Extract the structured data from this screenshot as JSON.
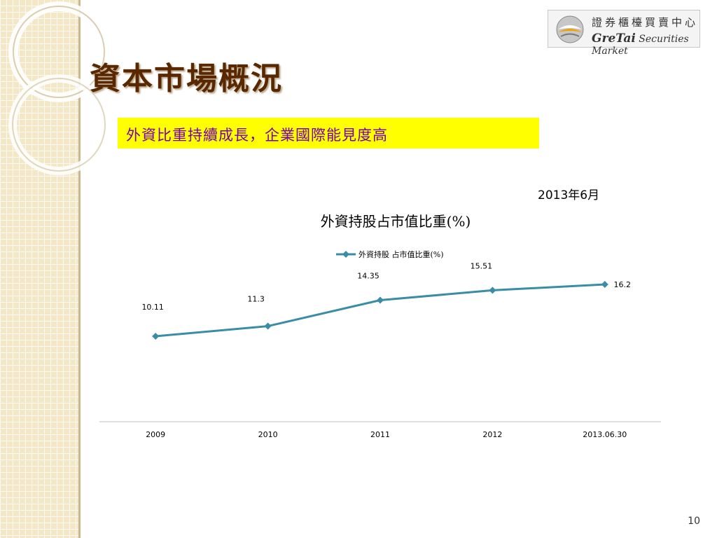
{
  "slide": {
    "title": "資本市場概況",
    "highlight": "外資比重持續成長，企業國際能見度高",
    "date": "2013年6月",
    "page_number": "10"
  },
  "logo": {
    "name_cn": "證券櫃檯買賣中心",
    "name_en_main": "GreTai",
    "name_en_sub": "Securities Market"
  },
  "colors": {
    "line": "#3a8da4",
    "highlight_bg": "#ffff00",
    "highlight_text": "#7a00b0",
    "title": "#5a2800"
  },
  "chart_data": {
    "type": "line",
    "title": "外資持股占市值比重(%)",
    "categories": [
      "2009",
      "2010",
      "2011",
      "2012",
      "2013.06.30"
    ],
    "series": [
      {
        "name": "外資持股 占市值比重(%)",
        "values": [
          10.11,
          11.3,
          14.35,
          15.51,
          16.2
        ]
      }
    ],
    "data_labels": [
      "10.11",
      "11.3",
      "14.35",
      "15.51",
      "16.2"
    ],
    "legend": "top",
    "grid": false
  }
}
